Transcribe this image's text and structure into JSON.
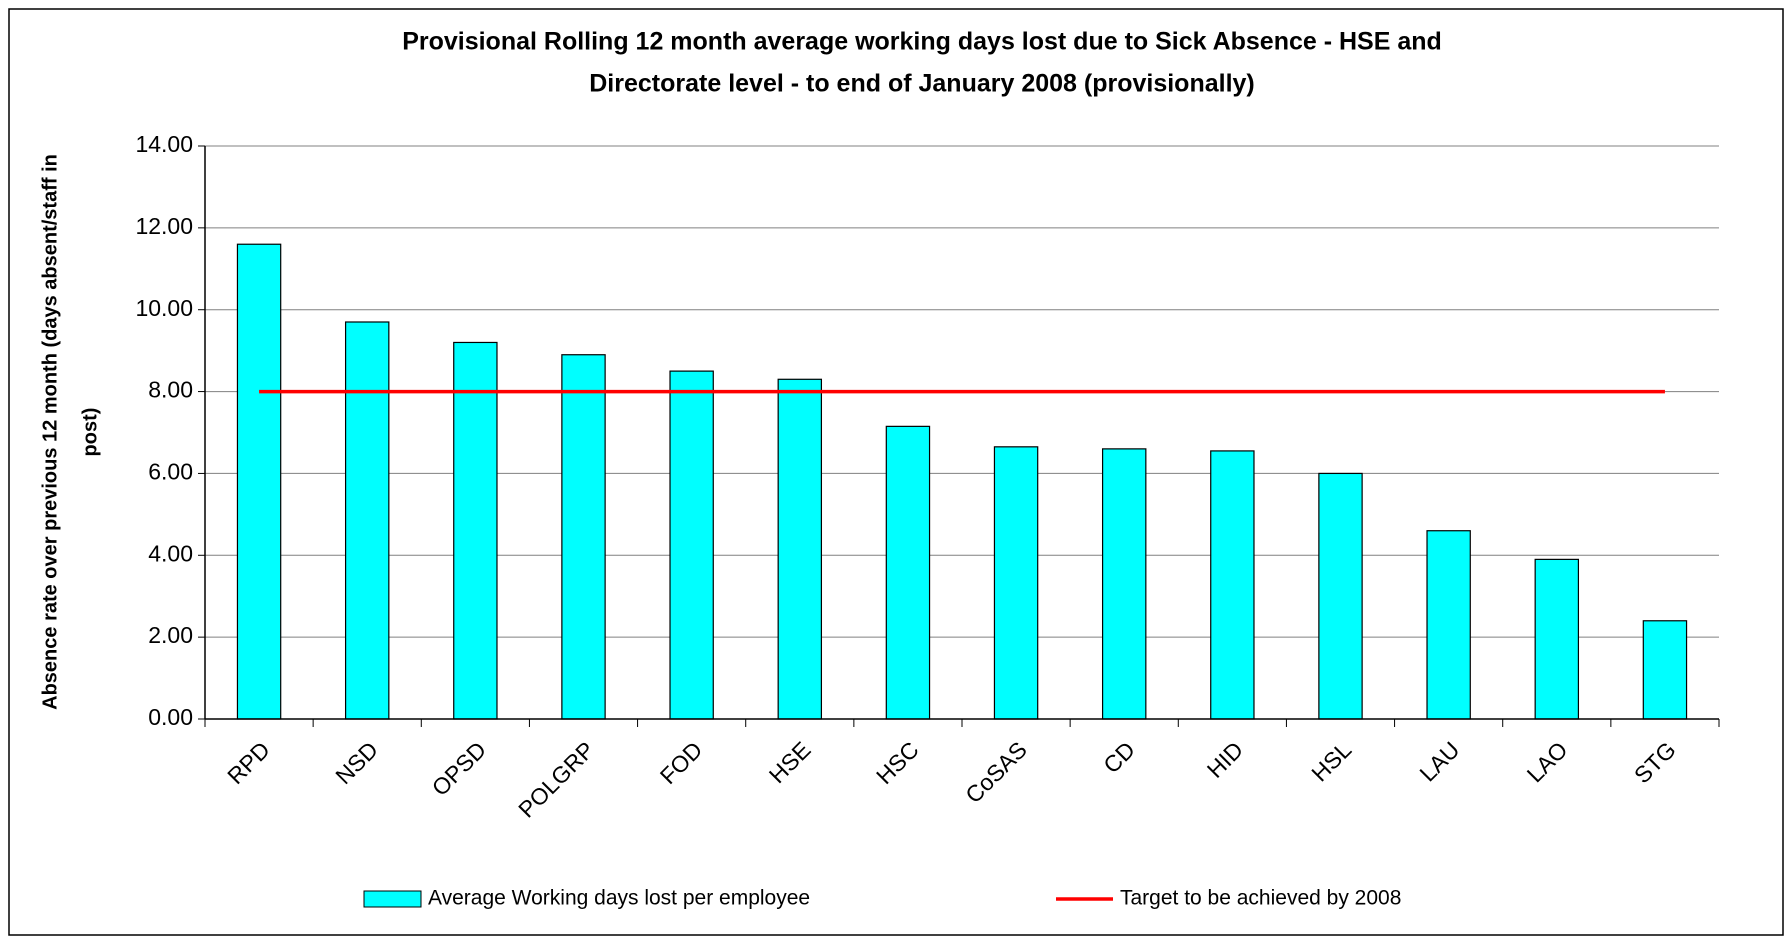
{
  "chart_data": {
    "type": "bar",
    "title": [
      "Provisional Rolling 12 month average working days lost due to Sick Absence - HSE and",
      "Directorate level - to end of January 2008 (provisionally)"
    ],
    "y_label": [
      "Absence rate over previous 12 month (days absent/staff in",
      "post)"
    ],
    "categories": [
      "RPD",
      "NSD",
      "OPSD",
      "POLGRP",
      "FOD",
      "HSE",
      "HSC",
      "CoSAS",
      "CD",
      "HID",
      "HSL",
      "LAU",
      "LAO",
      "STG"
    ],
    "series": [
      {
        "name": "Average Working days lost per employee",
        "color": "#00ffff",
        "type": "bar",
        "values": [
          11.6,
          9.7,
          9.2,
          8.9,
          8.5,
          8.3,
          7.15,
          6.65,
          6.6,
          6.55,
          6.0,
          4.6,
          3.9,
          2.4
        ]
      },
      {
        "name": "Target to be achieved by 2008",
        "color": "#ff0000",
        "type": "line",
        "values": [
          8,
          8,
          8,
          8,
          8,
          8,
          8,
          8,
          8,
          8,
          8,
          8,
          8,
          8
        ]
      }
    ],
    "ylim": [
      0,
      14
    ],
    "yticks": [
      {
        "value": 0,
        "label": "0.00"
      },
      {
        "value": 2,
        "label": "2.00"
      },
      {
        "value": 4,
        "label": "4.00"
      },
      {
        "value": 6,
        "label": "6.00"
      },
      {
        "value": 8,
        "label": "8.00"
      },
      {
        "value": 10,
        "label": "10.00"
      },
      {
        "value": 12,
        "label": "12.00"
      },
      {
        "value": 14,
        "label": "14.00"
      }
    ],
    "grid": true,
    "legend": "bottom"
  }
}
